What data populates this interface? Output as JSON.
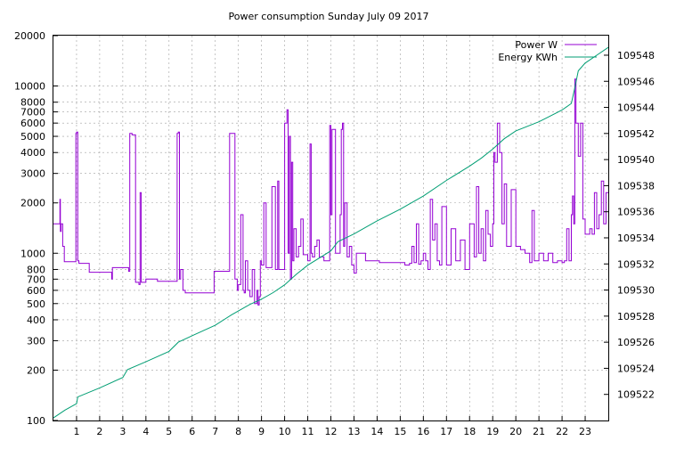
{
  "chart_data": {
    "type": "line",
    "title": "Power consumption Sunday July 09 2017",
    "x_ticks": [
      1,
      2,
      3,
      4,
      5,
      6,
      7,
      8,
      9,
      10,
      11,
      12,
      13,
      14,
      15,
      16,
      17,
      18,
      19,
      20,
      21,
      22,
      23
    ],
    "xlim": [
      0,
      24
    ],
    "y_left": {
      "scale": "log",
      "range": [
        100,
        20000
      ],
      "ticks": [
        100,
        200,
        300,
        400,
        500,
        600,
        700,
        800,
        1000,
        2000,
        3000,
        4000,
        5000,
        6000,
        7000,
        8000,
        10000,
        20000
      ]
    },
    "y_right": {
      "range": [
        109520,
        109549.5
      ],
      "ticks": [
        109522,
        109524,
        109526,
        109528,
        109530,
        109532,
        109534,
        109536,
        109538,
        109540,
        109542,
        109544,
        109546,
        109548
      ]
    },
    "grid": true,
    "legend_position": "top-right",
    "series": [
      {
        "name": "Power W",
        "axis": "left",
        "color": "#9400d3",
        "x": [
          0.0,
          0.25,
          0.28,
          0.3,
          0.33,
          0.4,
          0.47,
          0.55,
          0.95,
          0.97,
          1.0,
          1.05,
          1.1,
          1.45,
          1.55,
          2.5,
          2.52,
          2.55,
          3.2,
          3.25,
          3.3,
          3.4,
          3.55,
          3.7,
          3.75,
          3.8,
          4.0,
          4.5,
          5.3,
          5.35,
          5.4,
          5.45,
          5.5,
          5.6,
          5.7,
          6.5,
          6.8,
          6.95,
          7.0,
          7.1,
          7.6,
          7.62,
          7.7,
          7.85,
          7.95,
          8.0,
          8.1,
          8.2,
          8.25,
          8.3,
          8.4,
          8.5,
          8.6,
          8.7,
          8.8,
          8.85,
          8.9,
          8.95,
          9.0,
          9.1,
          9.2,
          9.4,
          9.45,
          9.6,
          9.7,
          9.75,
          10.0,
          10.1,
          10.15,
          10.2,
          10.25,
          10.3,
          10.35,
          10.4,
          10.5,
          10.6,
          10.7,
          10.8,
          11.0,
          11.1,
          11.15,
          11.2,
          11.3,
          11.4,
          11.5,
          11.7,
          11.9,
          11.95,
          12.0,
          12.05,
          12.2,
          12.4,
          12.45,
          12.5,
          12.55,
          12.6,
          12.7,
          12.8,
          12.9,
          13.0,
          13.1,
          13.5,
          13.6,
          14.1,
          14.5,
          15.1,
          15.2,
          15.4,
          15.5,
          15.6,
          15.7,
          15.8,
          15.9,
          16.0,
          16.1,
          16.2,
          16.3,
          16.4,
          16.5,
          16.6,
          16.7,
          16.8,
          17.0,
          17.2,
          17.4,
          17.6,
          17.8,
          18.0,
          18.2,
          18.3,
          18.4,
          18.5,
          18.6,
          18.7,
          18.8,
          18.9,
          19.0,
          19.05,
          19.1,
          19.2,
          19.3,
          19.4,
          19.5,
          19.6,
          19.8,
          20.0,
          20.2,
          20.4,
          20.6,
          20.7,
          20.8,
          21.0,
          21.2,
          21.4,
          21.6,
          21.8,
          22.0,
          22.1,
          22.2,
          22.3,
          22.4,
          22.45,
          22.5,
          22.55,
          22.6,
          22.7,
          22.8,
          22.9,
          23.0,
          23.1,
          23.2,
          23.3,
          23.4,
          23.5,
          23.6,
          23.7,
          23.8,
          23.9,
          24.0
        ],
        "values": [
          1500,
          1500,
          2100,
          1350,
          1500,
          1100,
          890,
          890,
          890,
          5200,
          5300,
          900,
          870,
          870,
          770,
          770,
          700,
          820,
          820,
          780,
          5200,
          5100,
          670,
          650,
          2300,
          670,
          700,
          680,
          680,
          5200,
          5300,
          700,
          800,
          600,
          580,
          580,
          580,
          780,
          780,
          780,
          780,
          5200,
          5200,
          700,
          600,
          650,
          1700,
          600,
          580,
          900,
          600,
          550,
          800,
          500,
          600,
          490,
          550,
          900,
          850,
          2000,
          820,
          820,
          2500,
          800,
          2700,
          800,
          6000,
          7200,
          1000,
          5000,
          700,
          3500,
          900,
          1400,
          950,
          1100,
          1600,
          980,
          900,
          4500,
          1000,
          950,
          1100,
          1200,
          950,
          900,
          900,
          5800,
          1700,
          5500,
          1000,
          1700,
          5500,
          6000,
          1100,
          2000,
          950,
          1100,
          850,
          760,
          1000,
          900,
          900,
          880,
          880,
          880,
          850,
          870,
          1100,
          880,
          1500,
          860,
          900,
          1000,
          900,
          800,
          2100,
          1200,
          1500,
          900,
          850,
          1900,
          850,
          1400,
          900,
          1200,
          800,
          1500,
          950,
          2500,
          1000,
          1400,
          900,
          1800,
          1300,
          1100,
          1500,
          4000,
          3500,
          6000,
          4000,
          1500,
          2600,
          1100,
          2400,
          1100,
          1050,
          1000,
          880,
          1800,
          900,
          1000,
          900,
          1000,
          880,
          900,
          880,
          900,
          1400,
          900,
          1700,
          2200,
          1500,
          11000,
          6000,
          3800,
          6000,
          1600,
          1300,
          1300,
          1400,
          1300,
          2300,
          1400,
          1700,
          2700,
          1500,
          2300,
          2300
        ]
      },
      {
        "name": "Energy KWh",
        "axis": "right",
        "color": "#009e73",
        "x": [
          0.0,
          0.5,
          1.0,
          1.05,
          2.0,
          3.0,
          3.2,
          4.0,
          5.0,
          5.4,
          6.0,
          7.0,
          7.7,
          8.5,
          9.0,
          9.5,
          10.0,
          10.5,
          11.0,
          12.0,
          12.3,
          13.0,
          14.0,
          15.0,
          16.0,
          17.0,
          18.0,
          18.5,
          19.0,
          19.5,
          20.0,
          21.0,
          22.0,
          22.4,
          22.55,
          22.7,
          23.0,
          23.5,
          24.0
        ],
        "values": [
          109520.2,
          109520.8,
          109521.3,
          109521.8,
          109522.5,
          109523.3,
          109523.9,
          109524.5,
          109525.3,
          109526.0,
          109526.5,
          109527.3,
          109528.1,
          109528.9,
          109529.3,
          109529.8,
          109530.4,
          109531.2,
          109531.9,
          109533.0,
          109533.7,
          109534.3,
          109535.3,
          109536.2,
          109537.2,
          109538.4,
          109539.5,
          109540.1,
          109540.8,
          109541.6,
          109542.2,
          109542.9,
          109543.8,
          109544.3,
          109545.5,
          109546.8,
          109547.4,
          109548.0,
          109548.6
        ]
      }
    ]
  }
}
